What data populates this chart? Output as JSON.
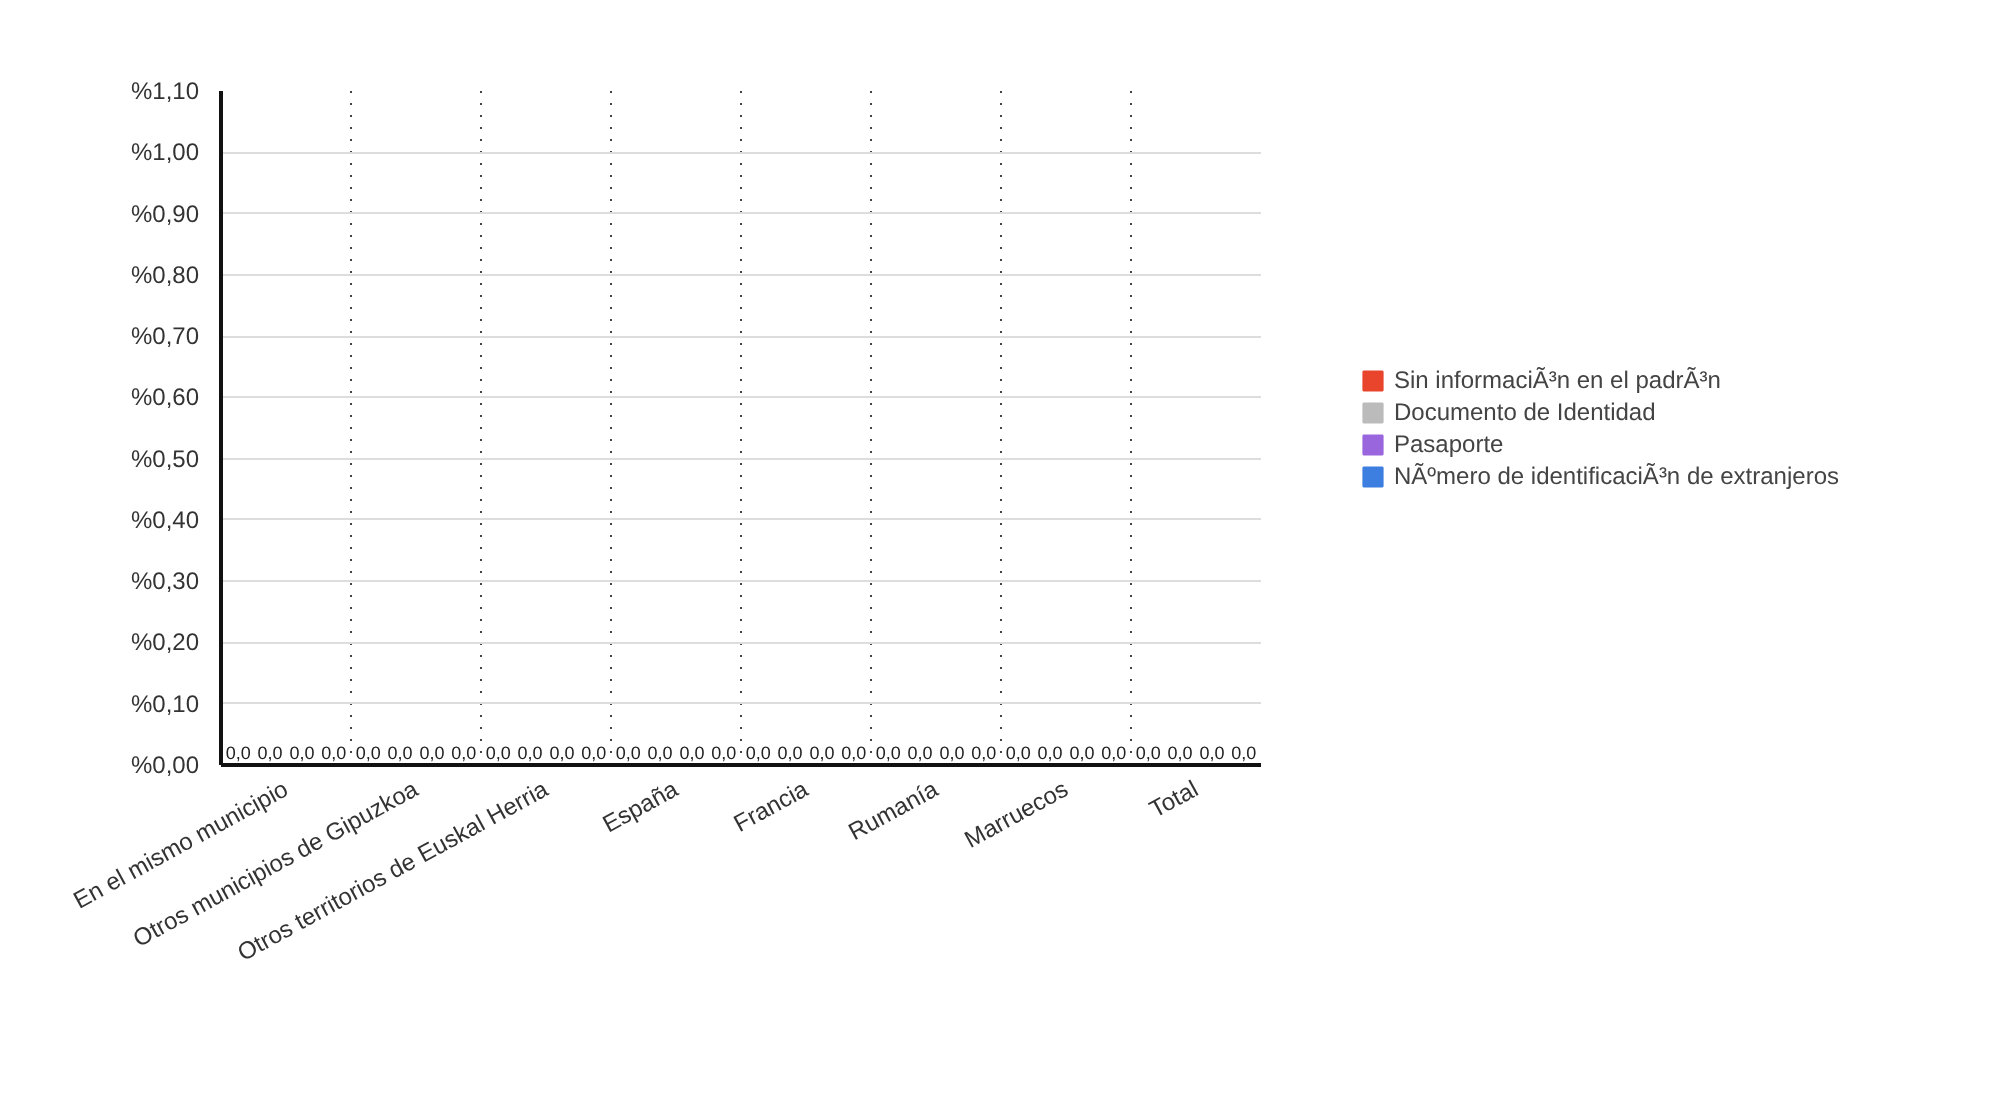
{
  "chart_data": {
    "type": "bar",
    "categories": [
      "En el mismo municipio",
      "Otros municipios de Gipuzkoa",
      "Otros territorios de Euskal Herria",
      "España",
      "Francia",
      "Rumanía",
      "Marruecos",
      "Total"
    ],
    "series": [
      {
        "name": "Sin informaciÃ³n en el padrÃ³n",
        "color": "#e8452c",
        "values": [
          0,
          0,
          0,
          0,
          0,
          0,
          0,
          0
        ],
        "value_labels": [
          "0,0",
          "0,0",
          "0,0",
          "0,0",
          "0,0",
          "0,0",
          "0,0",
          "0,0"
        ]
      },
      {
        "name": "Documento de Identidad",
        "color": "#bbbbbb",
        "values": [
          0,
          0,
          0,
          0,
          0,
          0,
          0,
          0
        ],
        "value_labels": [
          "0,0",
          "0,0",
          "0,0",
          "0,0",
          "0,0",
          "0,0",
          "0,0",
          "0,0"
        ]
      },
      {
        "name": "Pasaporte",
        "color": "#9966dd",
        "values": [
          0,
          0,
          0,
          0,
          0,
          0,
          0,
          0
        ],
        "value_labels": [
          "0,0",
          "0,0",
          "0,0",
          "0,0",
          "0,0",
          "0,0",
          "0,0",
          "0,0"
        ]
      },
      {
        "name": "NÃºmero de identificaciÃ³n de extranjeros",
        "color": "#3d7fe0",
        "values": [
          0,
          0,
          0,
          0,
          0,
          0,
          0,
          0
        ],
        "value_labels": [
          "0,0",
          "0,0",
          "0,0",
          "0,0",
          "0,0",
          "0,0",
          "0,0",
          "0,0"
        ]
      }
    ],
    "ylim": [
      0,
      1.1
    ],
    "yticks": [
      {
        "value": 0,
        "label": "%0,00"
      },
      {
        "value": 0.1,
        "label": "%0,10"
      },
      {
        "value": 0.2,
        "label": "%0,20"
      },
      {
        "value": 0.3,
        "label": "%0,30"
      },
      {
        "value": 0.4,
        "label": "%0,40"
      },
      {
        "value": 0.5,
        "label": "%0,50"
      },
      {
        "value": 0.6,
        "label": "%0,60"
      },
      {
        "value": 0.7,
        "label": "%0,70"
      },
      {
        "value": 0.8,
        "label": "%0,80"
      },
      {
        "value": 0.9,
        "label": "%0,90"
      },
      {
        "value": 1.0,
        "label": "%1,00"
      },
      {
        "value": 1.1,
        "label": "%1,10"
      }
    ],
    "grid": true,
    "legend": "right"
  }
}
